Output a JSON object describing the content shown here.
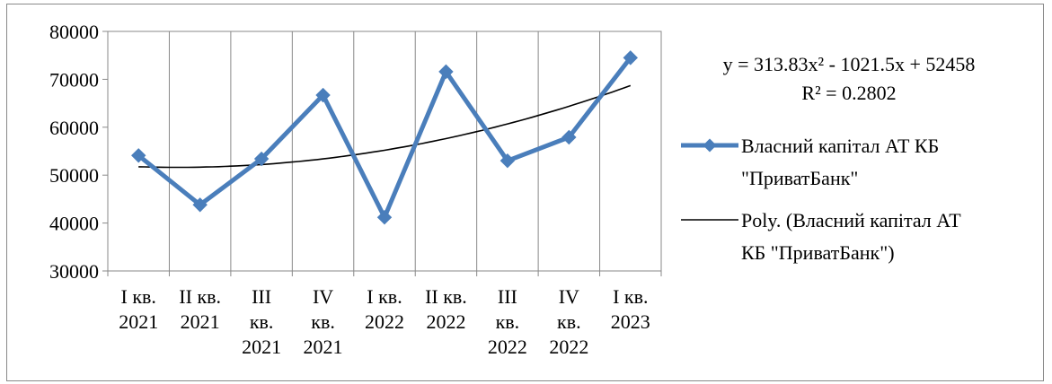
{
  "chart_data": {
    "type": "line",
    "categories": [
      [
        "I кв.",
        "2021"
      ],
      [
        "II кв.",
        "2021"
      ],
      [
        "III",
        "кв.",
        "2021"
      ],
      [
        "IV",
        "кв.",
        "2021"
      ],
      [
        "I кв.",
        "2022"
      ],
      [
        "II кв.",
        "2022"
      ],
      [
        "III",
        "кв.",
        "2022"
      ],
      [
        "IV",
        "кв.",
        "2022"
      ],
      [
        "I кв.",
        "2023"
      ]
    ],
    "series": [
      {
        "name": "Власний капітал АТ КБ \"ПриватБанк\"",
        "values": [
          54100,
          43800,
          53400,
          66700,
          41200,
          71600,
          53000,
          57900,
          74500
        ],
        "color": "#4a7ebb",
        "marker": "diamond"
      }
    ],
    "trendline": {
      "name": "Poly. (Власний капітал АТ КБ \"ПриватБанк\")",
      "type": "polynomial",
      "order": 2,
      "coefficients": [
        313.83,
        -1021.5,
        52458
      ],
      "color": "#000000",
      "equation": "y = 313.83x² - 1021.5x + 52458",
      "r_squared": "R² = 0.2802"
    },
    "legend_lines": {
      "series": [
        "Власний капітал АТ КБ",
        "\"ПриватБанк\""
      ],
      "trend": [
        "Poly. (Власний капітал АТ",
        "КБ \"ПриватБанк\")"
      ]
    },
    "y_ticks": [
      "30000",
      "40000",
      "50000",
      "60000",
      "70000",
      "80000"
    ],
    "ylim": [
      30000,
      80000
    ],
    "grid": "vertical",
    "legend_position": "right",
    "title": "",
    "xlabel": "",
    "ylabel": ""
  }
}
